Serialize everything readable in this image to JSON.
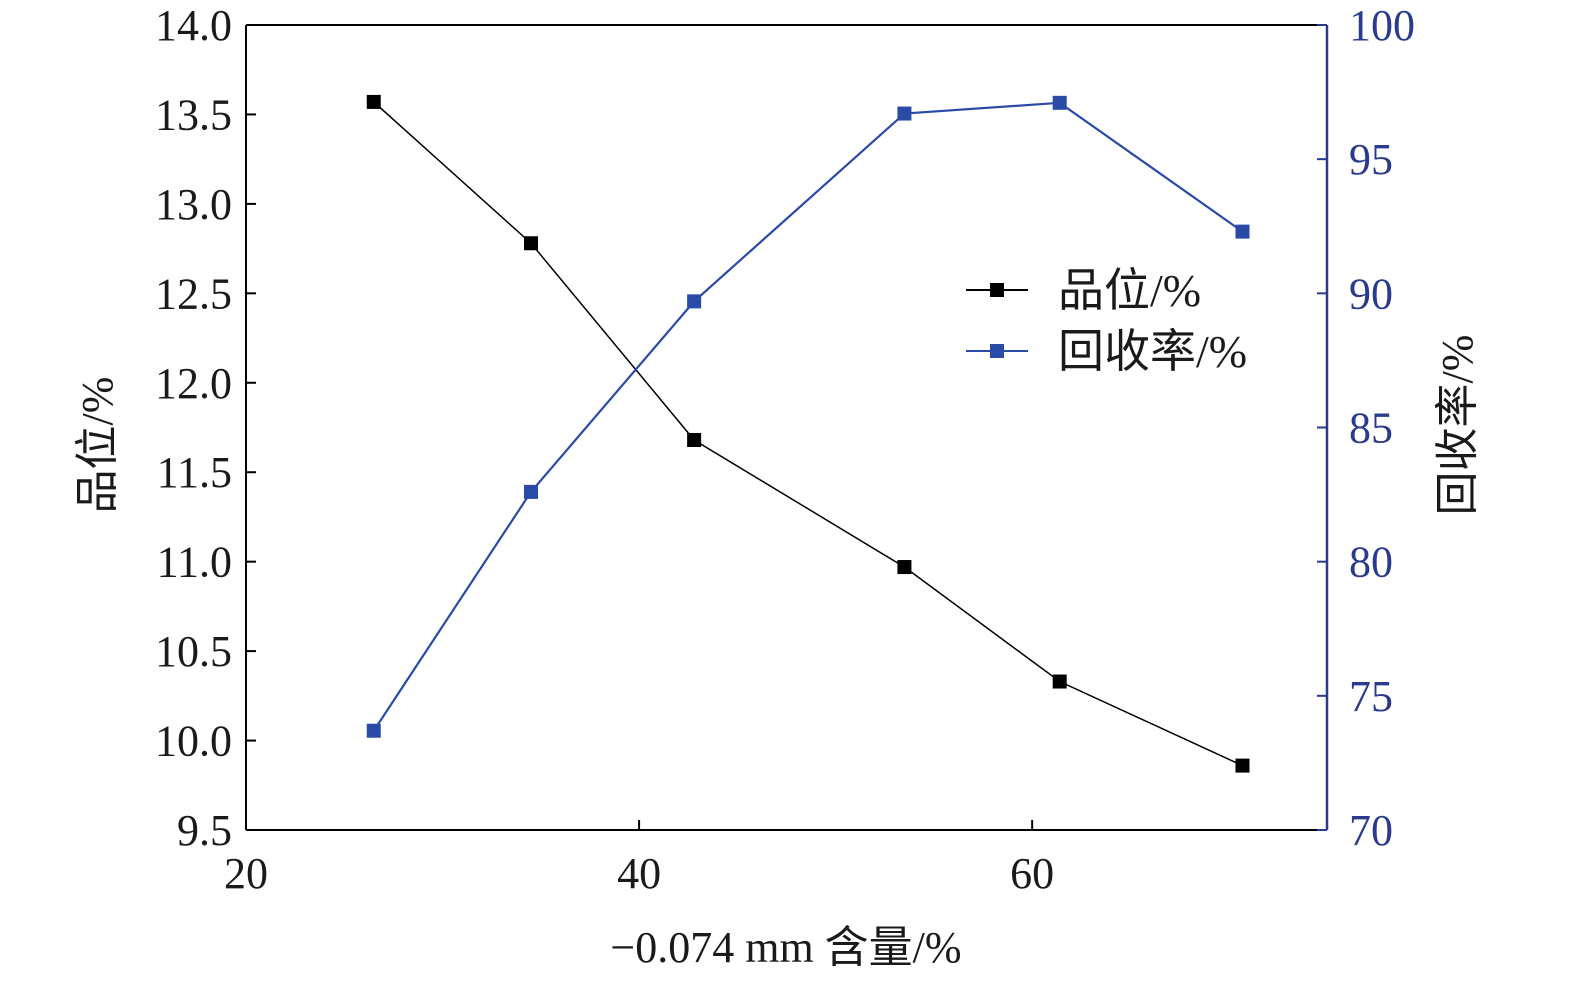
{
  "chart_data": {
    "type": "line",
    "xlabel": "−0.074 mm 含量/%",
    "ylabel_left": "品位/%",
    "ylabel_right": "回收率/%",
    "xlim": [
      20,
      75
    ],
    "xticks": [
      "20",
      "40",
      "60"
    ],
    "xtick_values": [
      20,
      40,
      60
    ],
    "ylim_left": [
      9.5,
      14.0
    ],
    "yticks_left": [
      "9.5",
      "10.0",
      "10.5",
      "11.0",
      "11.5",
      "12.0",
      "12.5",
      "13.0",
      "13.5",
      "14.0"
    ],
    "ytick_values_left": [
      9.5,
      10.0,
      10.5,
      11.0,
      11.5,
      12.0,
      12.5,
      13.0,
      13.5,
      14.0
    ],
    "ylim_right": [
      70,
      100
    ],
    "yticks_right": [
      "70",
      "75",
      "80",
      "85",
      "90",
      "95",
      "100"
    ],
    "ytick_values_right": [
      70,
      75,
      80,
      85,
      90,
      95,
      100
    ],
    "x": [
      26.5,
      34.5,
      42.8,
      53.5,
      61.4,
      70.7
    ],
    "series": [
      {
        "name": "品位/%",
        "axis": "left",
        "color": "#000000",
        "marker": "square",
        "values": [
          13.57,
          12.78,
          11.68,
          10.97,
          10.33,
          9.86
        ]
      },
      {
        "name": "回收率/%",
        "axis": "right",
        "color": "#2a4aa8",
        "marker": "square",
        "values": [
          73.7,
          82.6,
          89.7,
          96.7,
          97.1,
          92.3
        ]
      }
    ],
    "legend_position": "upper-right inside",
    "grid": false,
    "right_axis_color": "#2a3a8c"
  }
}
